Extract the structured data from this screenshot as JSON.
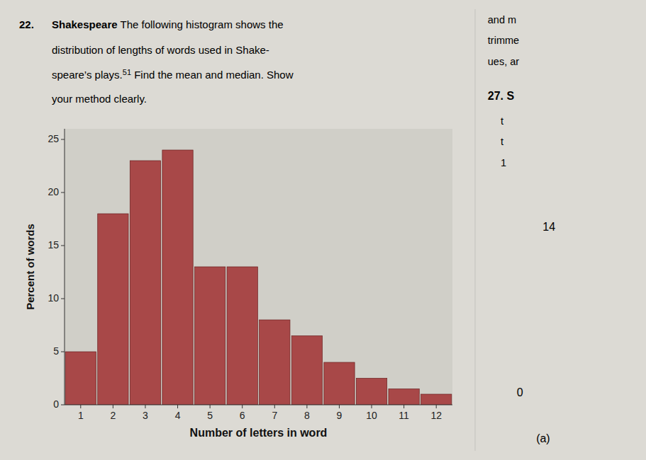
{
  "chart_data": {
    "type": "bar",
    "categories": [
      1,
      2,
      3,
      4,
      5,
      6,
      7,
      8,
      9,
      10,
      11,
      12
    ],
    "values": [
      5,
      18,
      23,
      24,
      13,
      13,
      8,
      6.5,
      4,
      2.5,
      1.5,
      1
    ],
    "color": "#a84848",
    "xlabel": "Number of letters in word",
    "ylabel": "Percent of words",
    "xlim": [
      0.5,
      12.5
    ],
    "ylim": [
      0,
      26
    ],
    "xticks": [
      1,
      2,
      3,
      4,
      5,
      6,
      7,
      8,
      9,
      10,
      11,
      12
    ],
    "yticks": [
      0,
      5,
      10,
      15,
      20,
      25
    ],
    "grid": false,
    "annotations": [
      "22.",
      "Shakespeare",
      " The following histogram shows the",
      "distribution of lengths of words used in Shake-",
      "speare’s plays.",
      "51",
      " Find the mean and median. Show",
      "your method clearly.",
      "and m",
      "trimme",
      "ues, ar",
      "27.  S",
      "t",
      "t",
      "1",
      "14",
      "0",
      "(a)"
    ]
  }
}
